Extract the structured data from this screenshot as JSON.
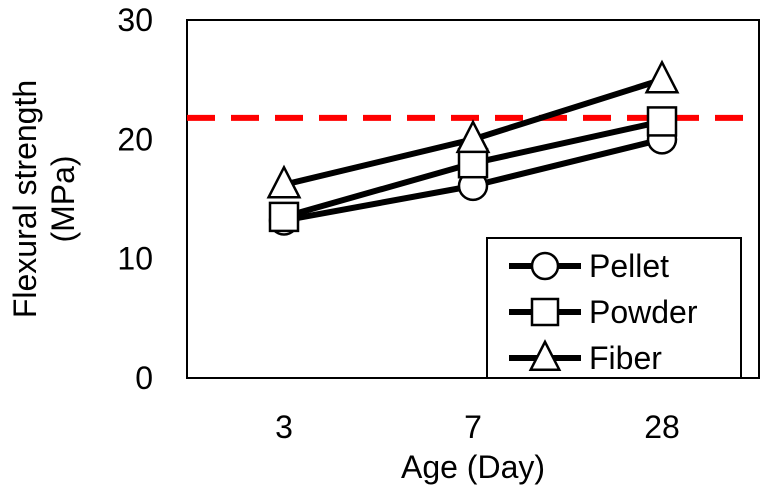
{
  "chart_data": {
    "type": "line",
    "categories": [
      "3",
      "7",
      "28"
    ],
    "series": [
      {
        "name": "Pellet",
        "marker": "circle",
        "values": [
          13.2,
          16.1,
          20.0
        ]
      },
      {
        "name": "Powder",
        "marker": "square",
        "values": [
          13.5,
          18.0,
          21.5
        ]
      },
      {
        "name": "Fiber",
        "marker": "triangle",
        "values": [
          16.2,
          20.0,
          25.0
        ]
      }
    ],
    "reference_line": {
      "value": 21.8,
      "color": "#ff0000",
      "style": "dashed"
    },
    "xlabel": "Age (Day)",
    "ylabel": [
      "Flexural strength",
      "(MPa)"
    ],
    "ylim": [
      0,
      30
    ],
    "yticks": [
      "0",
      "10",
      "20",
      "30"
    ],
    "legend_position": "bottom-right",
    "grid": false,
    "line_color": "#000000",
    "marker_fill": "#ffffff"
  }
}
